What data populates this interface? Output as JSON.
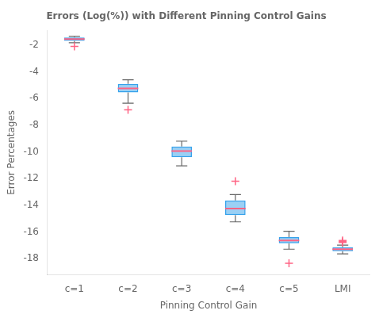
{
  "chart_data": {
    "type": "box",
    "title": "Errors (Log(%)) with Different Pinning Control Gains",
    "xlabel": "Pinning Control Gain",
    "ylabel": "Error Percentages",
    "categories": [
      "c=1",
      "c=2",
      "c=3",
      "c=4",
      "c=5",
      "LMI"
    ],
    "boxes": [
      {
        "q1": -1.68,
        "median": -1.55,
        "q3": -1.43,
        "whisker_low": -1.82,
        "whisker_high": -1.35,
        "outliers": [
          -2.1
        ]
      },
      {
        "q1": -5.55,
        "median": -5.25,
        "q3": -4.9,
        "whisker_low": -6.35,
        "whisker_high": -4.6,
        "outliers": [
          -6.85
        ]
      },
      {
        "q1": -10.4,
        "median": -9.95,
        "q3": -9.6,
        "whisker_low": -11.05,
        "whisker_high": -9.2,
        "outliers": []
      },
      {
        "q1": -14.75,
        "median": -14.25,
        "q3": -13.65,
        "whisker_low": -15.25,
        "whisker_high": -13.2,
        "outliers": [
          -12.2
        ]
      },
      {
        "q1": -16.85,
        "median": -16.65,
        "q3": -16.4,
        "whisker_low": -17.3,
        "whisker_high": -15.95,
        "outliers": [
          -18.35
        ]
      },
      {
        "q1": -17.45,
        "median": -17.3,
        "q3": -17.15,
        "whisker_low": -17.65,
        "whisker_high": -17.0,
        "outliers": [
          -16.65,
          -16.72,
          -16.8
        ]
      }
    ],
    "ylim": [
      -19.2,
      -0.9
    ],
    "yticks": [
      -2,
      -4,
      -6,
      -8,
      -10,
      -12,
      -14,
      -16,
      -18
    ],
    "grid": false
  }
}
